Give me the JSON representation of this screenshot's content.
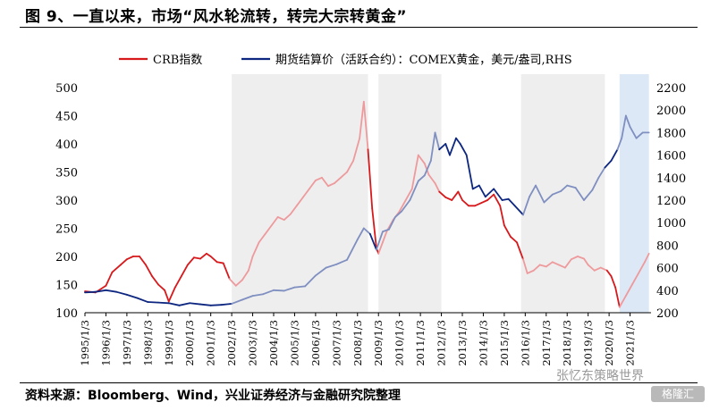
{
  "header": {
    "title": "图 9、一直以来，市场“风水轮流转，转完大宗转黄金”"
  },
  "footer": {
    "source": "资料来源：Bloomberg、Wind，兴业证券经济与金融研究院整理"
  },
  "watermark": {
    "text": "张忆东策略世界",
    "logo_text": "格隆汇"
  },
  "chart_data": {
    "type": "line",
    "title": "",
    "xlabel": "",
    "ylabel": "",
    "ylabel_right": "",
    "x_ticks": [
      "1995/1/3",
      "1996/1/3",
      "1997/1/3",
      "1998/1/3",
      "1999/1/3",
      "2000/1/3",
      "2001/1/3",
      "2002/1/3",
      "2003/1/3",
      "2004/1/3",
      "2005/1/3",
      "2006/1/3",
      "2007/1/3",
      "2008/1/3",
      "2009/1/3",
      "2010/1/3",
      "2011/1/3",
      "2012/1/3",
      "2013/1/3",
      "2014/1/3",
      "2015/1/3",
      "2016/1/3",
      "2017/1/3",
      "2018/1/3",
      "2019/1/3",
      "2020/1/3",
      "2021/1/3"
    ],
    "xlim": [
      1995.0,
      2022.0
    ],
    "ylim": [
      100,
      500
    ],
    "yticks": [
      100,
      150,
      200,
      250,
      300,
      350,
      400,
      450,
      500
    ],
    "ylim_right": [
      200,
      2200
    ],
    "yticks_right": [
      200,
      400,
      600,
      800,
      1000,
      1200,
      1400,
      1600,
      1800,
      2000,
      2200
    ],
    "grid": false,
    "legend_position": "top",
    "shaded_periods": [
      [
        2002.0,
        2008.5
      ],
      [
        2009.0,
        2012.0
      ],
      [
        2015.8,
        2019.8
      ],
      [
        2020.5,
        2021.9
      ]
    ],
    "series": [
      {
        "name": "CRB指数",
        "axis": "left",
        "color": "#d7191c",
        "faded_color": "#ee9a9c",
        "x": [
          1995.0,
          1995.5,
          1996.0,
          1996.3,
          1996.7,
          1997.0,
          1997.3,
          1997.6,
          1997.9,
          1998.2,
          1998.5,
          1998.8,
          1999.0,
          1999.3,
          1999.6,
          1999.9,
          2000.2,
          2000.5,
          2000.8,
          2001.0,
          2001.3,
          2001.6,
          2001.9,
          2002.2,
          2002.5,
          2002.8,
          2003.0,
          2003.3,
          2003.6,
          2003.9,
          2004.2,
          2004.5,
          2004.8,
          2005.1,
          2005.4,
          2005.7,
          2006.0,
          2006.3,
          2006.6,
          2006.9,
          2007.2,
          2007.5,
          2007.8,
          2008.1,
          2008.3,
          2008.5,
          2008.7,
          2008.9,
          2009.0,
          2009.2,
          2009.4,
          2009.7,
          2010.0,
          2010.3,
          2010.6,
          2010.9,
          2011.2,
          2011.4,
          2011.7,
          2011.9,
          2012.2,
          2012.5,
          2012.8,
          2013.0,
          2013.3,
          2013.6,
          2013.9,
          2014.2,
          2014.5,
          2014.8,
          2015.0,
          2015.3,
          2015.6,
          2015.9,
          2016.1,
          2016.4,
          2016.7,
          2017.0,
          2017.3,
          2017.6,
          2017.9,
          2018.2,
          2018.5,
          2018.8,
          2019.0,
          2019.3,
          2019.6,
          2019.9,
          2020.1,
          2020.3,
          2020.5,
          2020.8,
          2021.1,
          2021.4,
          2021.7,
          2021.9
        ],
        "y": [
          138,
          136,
          148,
          172,
          185,
          195,
          200,
          200,
          185,
          165,
          150,
          140,
          120,
          145,
          165,
          185,
          198,
          196,
          205,
          200,
          190,
          188,
          160,
          148,
          158,
          175,
          200,
          225,
          240,
          255,
          270,
          265,
          275,
          290,
          305,
          320,
          335,
          340,
          325,
          330,
          340,
          350,
          370,
          410,
          475,
          390,
          285,
          215,
          205,
          225,
          245,
          265,
          280,
          300,
          320,
          380,
          365,
          345,
          330,
          315,
          305,
          300,
          315,
          300,
          290,
          290,
          295,
          300,
          310,
          290,
          255,
          235,
          225,
          195,
          170,
          175,
          185,
          182,
          190,
          185,
          180,
          195,
          200,
          196,
          185,
          175,
          180,
          175,
          165,
          145,
          110,
          130,
          150,
          170,
          190,
          205
        ],
        "values_in_shaded_regions_faded": true
      },
      {
        "name": "期货结算价（活跃合约）：COMEX黄金，美元/盎司,RHS",
        "axis": "right",
        "color": "#0d2680",
        "faded_color": "#7f8fc0",
        "x": [
          1995.0,
          1995.5,
          1996.0,
          1996.5,
          1997.0,
          1997.5,
          1998.0,
          1998.5,
          1999.0,
          1999.5,
          2000.0,
          2000.5,
          2001.0,
          2001.5,
          2002.0,
          2002.5,
          2003.0,
          2003.5,
          2004.0,
          2004.5,
          2005.0,
          2005.5,
          2006.0,
          2006.5,
          2007.0,
          2007.5,
          2008.0,
          2008.3,
          2008.6,
          2008.9,
          2009.2,
          2009.5,
          2009.8,
          2010.1,
          2010.5,
          2010.9,
          2011.2,
          2011.5,
          2011.7,
          2011.9,
          2012.2,
          2012.4,
          2012.7,
          2012.9,
          2013.2,
          2013.5,
          2013.8,
          2014.1,
          2014.5,
          2014.9,
          2015.2,
          2015.5,
          2015.9,
          2016.2,
          2016.5,
          2016.9,
          2017.3,
          2017.7,
          2018.0,
          2018.4,
          2018.8,
          2019.2,
          2019.5,
          2019.8,
          2020.1,
          2020.4,
          2020.6,
          2020.8,
          2021.0,
          2021.3,
          2021.6,
          2021.9
        ],
        "y": [
          380,
          385,
          400,
          385,
          360,
          330,
          295,
          290,
          285,
          265,
          285,
          275,
          265,
          270,
          280,
          315,
          350,
          365,
          400,
          395,
          425,
          435,
          530,
          600,
          630,
          670,
          850,
          950,
          900,
          760,
          920,
          940,
          1050,
          1100,
          1200,
          1370,
          1420,
          1550,
          1800,
          1650,
          1700,
          1600,
          1750,
          1700,
          1600,
          1300,
          1330,
          1230,
          1300,
          1200,
          1210,
          1150,
          1070,
          1230,
          1330,
          1180,
          1250,
          1280,
          1330,
          1310,
          1200,
          1290,
          1400,
          1490,
          1550,
          1650,
          1750,
          1950,
          1850,
          1750,
          1800,
          1800
        ],
        "values_in_shaded_regions_faded": true
      }
    ]
  }
}
